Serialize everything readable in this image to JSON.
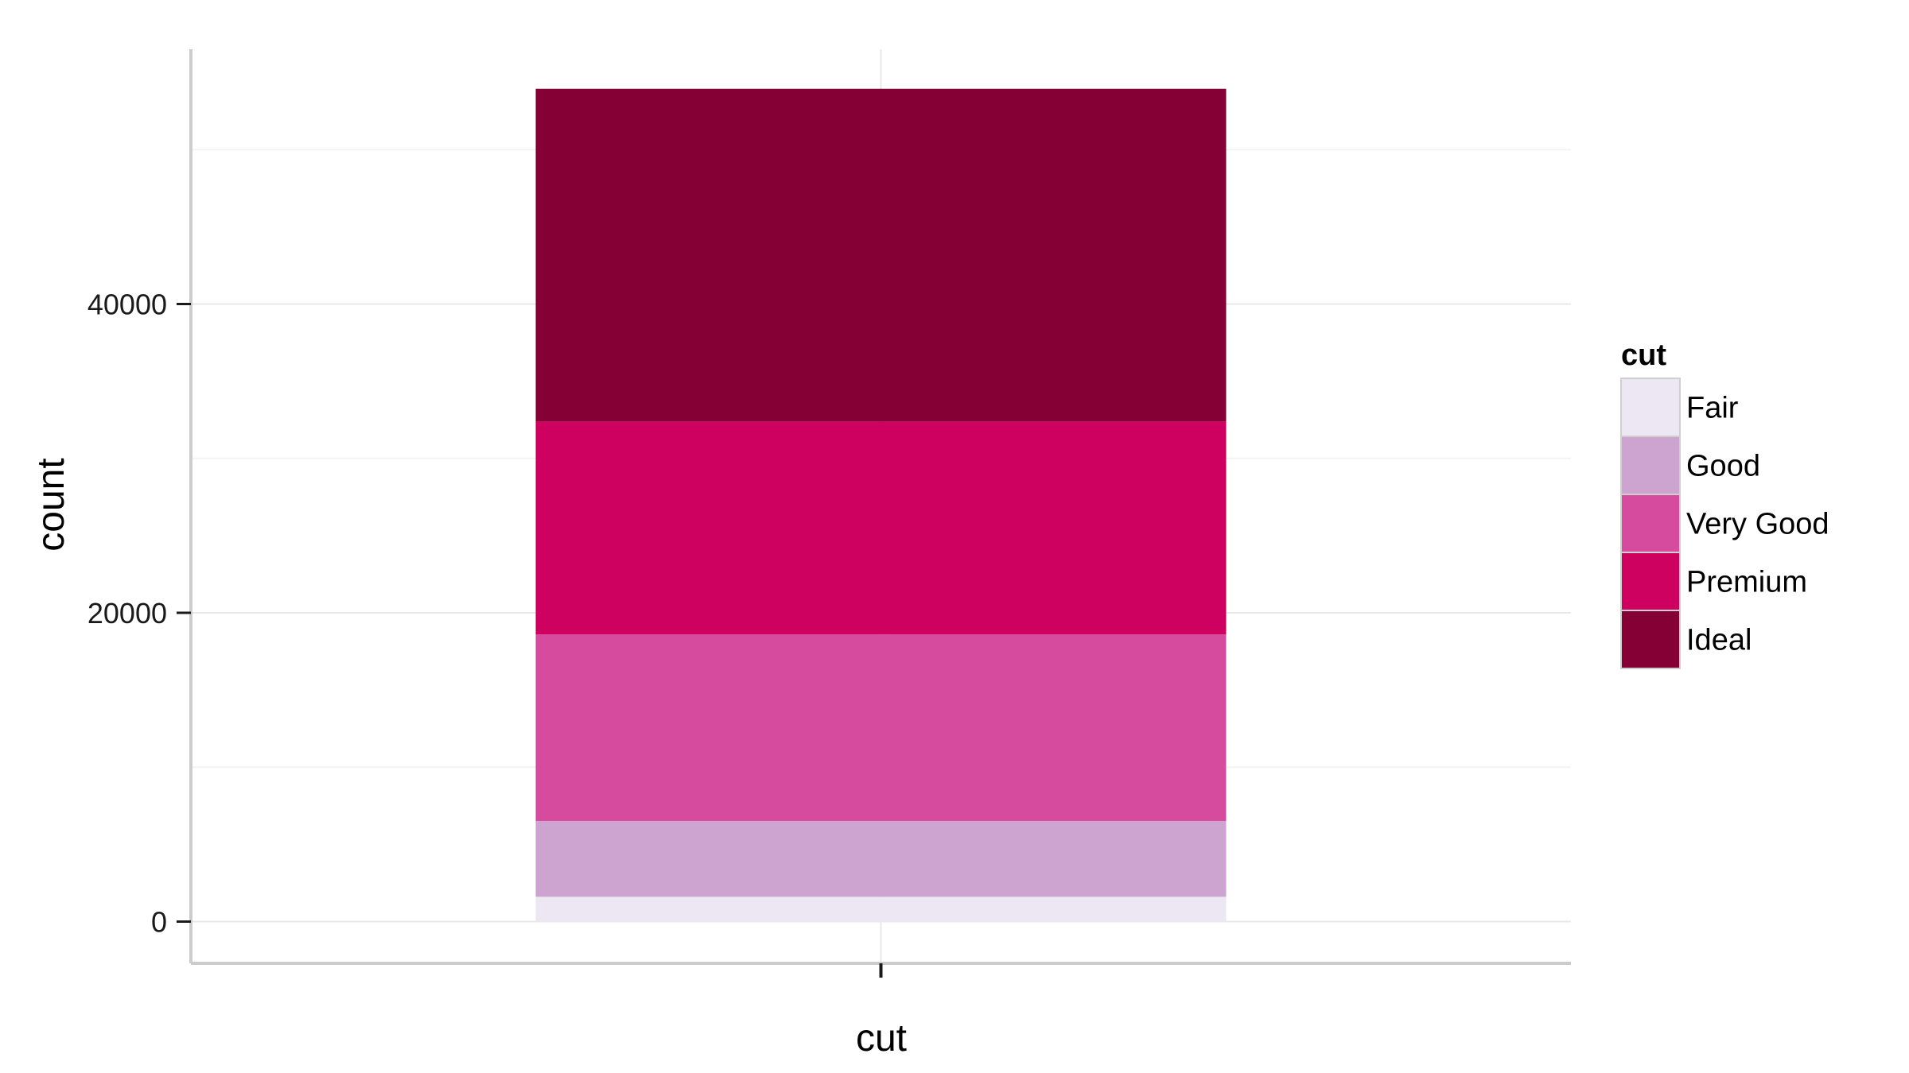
{
  "chart_data": {
    "type": "bar",
    "stacked": true,
    "title": "",
    "xlabel": "cut",
    "ylabel": "count",
    "categories": [
      ""
    ],
    "ylim": [
      -2700,
      56500
    ],
    "yticks": [
      0,
      20000,
      40000
    ],
    "grid": true,
    "legend": {
      "title": "cut",
      "position": "right"
    },
    "series": [
      {
        "name": "Fair",
        "values": [
          1610
        ],
        "color": "#ECE7F2"
      },
      {
        "name": "Good",
        "values": [
          4906
        ],
        "color": "#CDA4CF"
      },
      {
        "name": "Very Good",
        "values": [
          12082
        ],
        "color": "#D74B9F"
      },
      {
        "name": "Premium",
        "values": [
          13791
        ],
        "color": "#CE0060"
      },
      {
        "name": "Ideal",
        "values": [
          21551
        ],
        "color": "#840035"
      }
    ],
    "axis_color": "#cccccc",
    "grid_color": "#e8e8e8",
    "grid_minor_color": "#f3f3f3"
  }
}
